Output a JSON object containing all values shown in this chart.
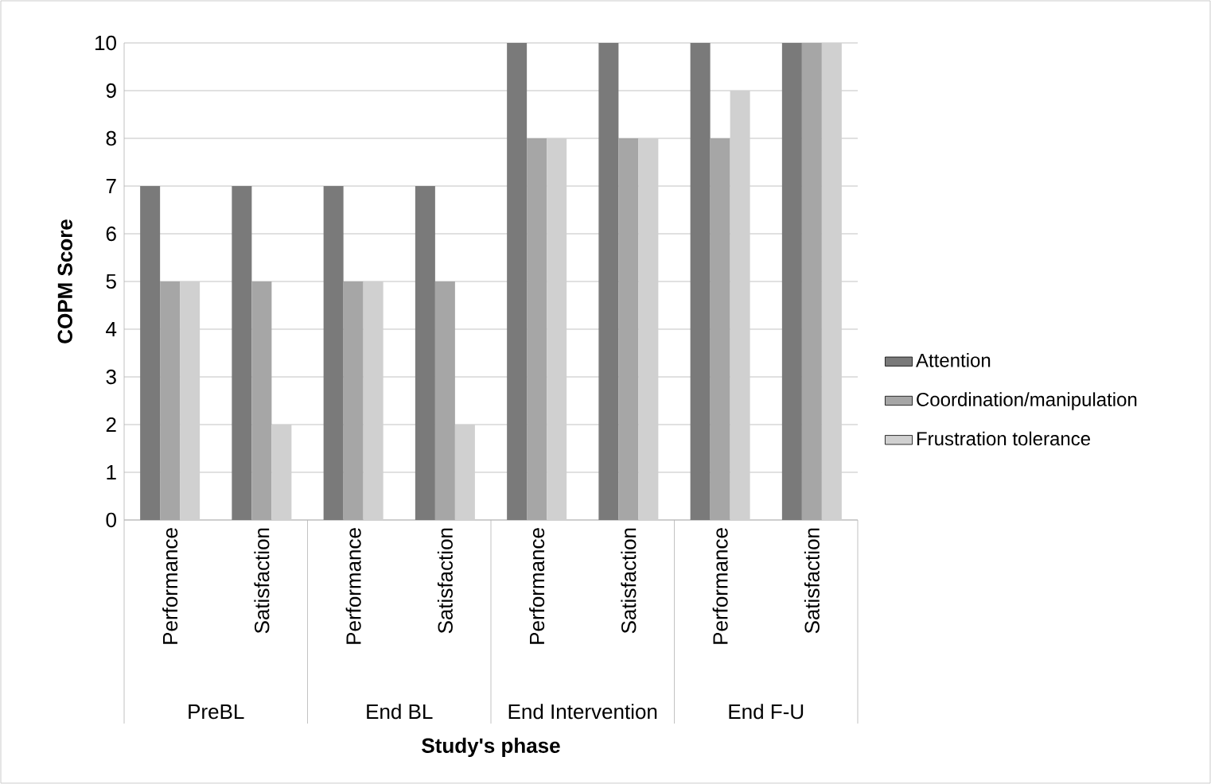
{
  "chart_data": {
    "type": "bar",
    "categories": [
      "Performance",
      "Satisfaction",
      "Performance",
      "Satisfaction",
      "Performance",
      "Satisfaction",
      "Performance",
      "Satisfaction"
    ],
    "series": [
      {
        "name": "Attention",
        "color": "#7a7a7a",
        "values": [
          7,
          7,
          7,
          7,
          10,
          10,
          10,
          10
        ]
      },
      {
        "name": "Coordination/manipulation",
        "color": "#a6a6a6",
        "values": [
          5,
          5,
          5,
          5,
          8,
          8,
          8,
          10
        ]
      },
      {
        "name": "Frustration tolerance",
        "color": "#d0d0d0",
        "values": [
          5,
          2,
          5,
          2,
          8,
          8,
          9,
          10
        ]
      }
    ],
    "xlabel": "Study's phase",
    "ylabel": "COPM Score",
    "ylim": [
      0,
      10
    ],
    "yticks": [
      0,
      1,
      2,
      3,
      4,
      5,
      6,
      7,
      8,
      9,
      10
    ],
    "grid": "y",
    "legend": "right",
    "annotations": [
      "PreBL",
      "End BL",
      "End Intervention",
      "End F-U"
    ]
  }
}
